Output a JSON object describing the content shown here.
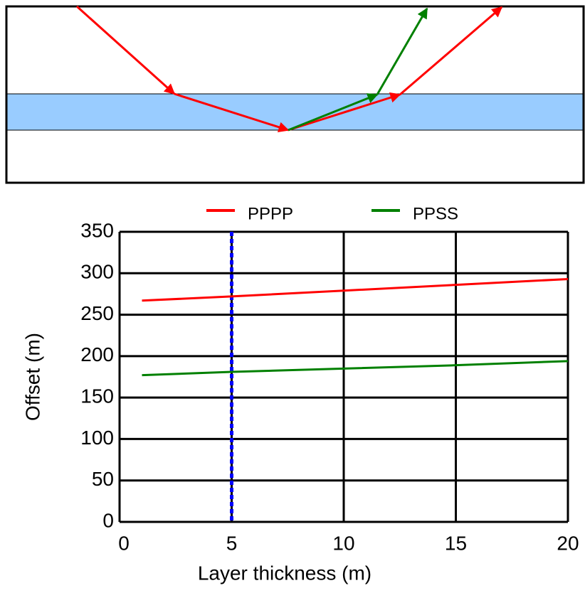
{
  "chart_data": {
    "type": "line",
    "xlabel": "Layer thickness (m)",
    "ylabel": "Offset (m)",
    "x": [
      1,
      5,
      10,
      15,
      20
    ],
    "series": [
      {
        "name": "PPPP",
        "color": "#ff0000",
        "values": [
          267,
          272,
          279,
          286,
          293
        ]
      },
      {
        "name": "PPSS",
        "color": "#008000",
        "values": [
          177,
          181,
          185,
          189,
          194
        ]
      }
    ],
    "xlim": [
      0,
      20
    ],
    "xticks": [
      0,
      5,
      10,
      15,
      20
    ],
    "ylim": [
      0,
      350
    ],
    "yticks": [
      0,
      50,
      100,
      150,
      200,
      250,
      300,
      350
    ],
    "grid": true,
    "reference_x": 5,
    "reference_color": "#0000ff"
  }
}
